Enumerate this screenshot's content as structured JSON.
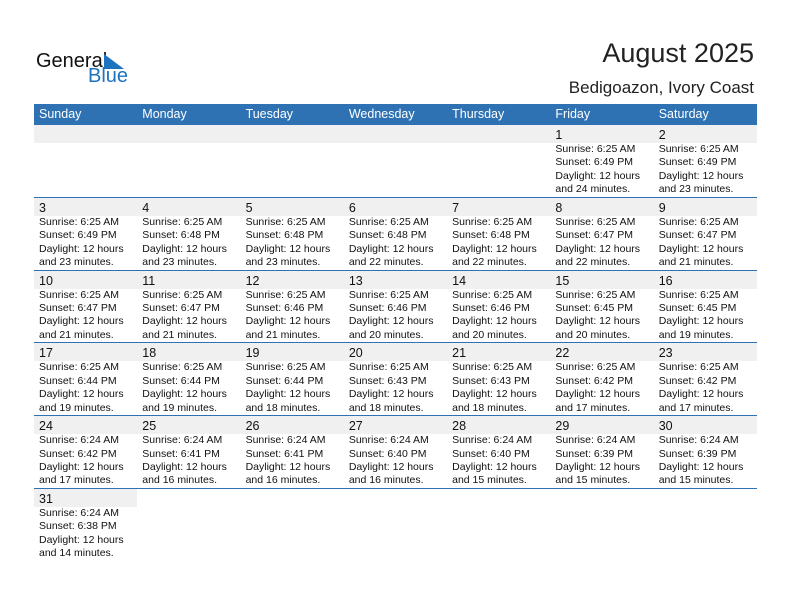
{
  "logo": {
    "line1": "General",
    "line2": "Blue"
  },
  "header": {
    "title": "August 2025",
    "location": "Bedigoazon, Ivory Coast"
  },
  "colors": {
    "accent": "#2e72b4",
    "band": "#f0f0f0",
    "logo_blue": "#1e73be"
  },
  "weekdays": [
    "Sunday",
    "Monday",
    "Tuesday",
    "Wednesday",
    "Thursday",
    "Friday",
    "Saturday"
  ],
  "weeks": [
    [
      null,
      null,
      null,
      null,
      null,
      {
        "day": "1",
        "sunrise": "Sunrise: 6:25 AM",
        "sunset": "Sunset: 6:49 PM",
        "daylight": "Daylight: 12 hours",
        "minutes": "and 24 minutes."
      },
      {
        "day": "2",
        "sunrise": "Sunrise: 6:25 AM",
        "sunset": "Sunset: 6:49 PM",
        "daylight": "Daylight: 12 hours",
        "minutes": "and 23 minutes."
      }
    ],
    [
      {
        "day": "3",
        "sunrise": "Sunrise: 6:25 AM",
        "sunset": "Sunset: 6:49 PM",
        "daylight": "Daylight: 12 hours",
        "minutes": "and 23 minutes."
      },
      {
        "day": "4",
        "sunrise": "Sunrise: 6:25 AM",
        "sunset": "Sunset: 6:48 PM",
        "daylight": "Daylight: 12 hours",
        "minutes": "and 23 minutes."
      },
      {
        "day": "5",
        "sunrise": "Sunrise: 6:25 AM",
        "sunset": "Sunset: 6:48 PM",
        "daylight": "Daylight: 12 hours",
        "minutes": "and 23 minutes."
      },
      {
        "day": "6",
        "sunrise": "Sunrise: 6:25 AM",
        "sunset": "Sunset: 6:48 PM",
        "daylight": "Daylight: 12 hours",
        "minutes": "and 22 minutes."
      },
      {
        "day": "7",
        "sunrise": "Sunrise: 6:25 AM",
        "sunset": "Sunset: 6:48 PM",
        "daylight": "Daylight: 12 hours",
        "minutes": "and 22 minutes."
      },
      {
        "day": "8",
        "sunrise": "Sunrise: 6:25 AM",
        "sunset": "Sunset: 6:47 PM",
        "daylight": "Daylight: 12 hours",
        "minutes": "and 22 minutes."
      },
      {
        "day": "9",
        "sunrise": "Sunrise: 6:25 AM",
        "sunset": "Sunset: 6:47 PM",
        "daylight": "Daylight: 12 hours",
        "minutes": "and 21 minutes."
      }
    ],
    [
      {
        "day": "10",
        "sunrise": "Sunrise: 6:25 AM",
        "sunset": "Sunset: 6:47 PM",
        "daylight": "Daylight: 12 hours",
        "minutes": "and 21 minutes."
      },
      {
        "day": "11",
        "sunrise": "Sunrise: 6:25 AM",
        "sunset": "Sunset: 6:47 PM",
        "daylight": "Daylight: 12 hours",
        "minutes": "and 21 minutes."
      },
      {
        "day": "12",
        "sunrise": "Sunrise: 6:25 AM",
        "sunset": "Sunset: 6:46 PM",
        "daylight": "Daylight: 12 hours",
        "minutes": "and 21 minutes."
      },
      {
        "day": "13",
        "sunrise": "Sunrise: 6:25 AM",
        "sunset": "Sunset: 6:46 PM",
        "daylight": "Daylight: 12 hours",
        "minutes": "and 20 minutes."
      },
      {
        "day": "14",
        "sunrise": "Sunrise: 6:25 AM",
        "sunset": "Sunset: 6:46 PM",
        "daylight": "Daylight: 12 hours",
        "minutes": "and 20 minutes."
      },
      {
        "day": "15",
        "sunrise": "Sunrise: 6:25 AM",
        "sunset": "Sunset: 6:45 PM",
        "daylight": "Daylight: 12 hours",
        "minutes": "and 20 minutes."
      },
      {
        "day": "16",
        "sunrise": "Sunrise: 6:25 AM",
        "sunset": "Sunset: 6:45 PM",
        "daylight": "Daylight: 12 hours",
        "minutes": "and 19 minutes."
      }
    ],
    [
      {
        "day": "17",
        "sunrise": "Sunrise: 6:25 AM",
        "sunset": "Sunset: 6:44 PM",
        "daylight": "Daylight: 12 hours",
        "minutes": "and 19 minutes."
      },
      {
        "day": "18",
        "sunrise": "Sunrise: 6:25 AM",
        "sunset": "Sunset: 6:44 PM",
        "daylight": "Daylight: 12 hours",
        "minutes": "and 19 minutes."
      },
      {
        "day": "19",
        "sunrise": "Sunrise: 6:25 AM",
        "sunset": "Sunset: 6:44 PM",
        "daylight": "Daylight: 12 hours",
        "minutes": "and 18 minutes."
      },
      {
        "day": "20",
        "sunrise": "Sunrise: 6:25 AM",
        "sunset": "Sunset: 6:43 PM",
        "daylight": "Daylight: 12 hours",
        "minutes": "and 18 minutes."
      },
      {
        "day": "21",
        "sunrise": "Sunrise: 6:25 AM",
        "sunset": "Sunset: 6:43 PM",
        "daylight": "Daylight: 12 hours",
        "minutes": "and 18 minutes."
      },
      {
        "day": "22",
        "sunrise": "Sunrise: 6:25 AM",
        "sunset": "Sunset: 6:42 PM",
        "daylight": "Daylight: 12 hours",
        "minutes": "and 17 minutes."
      },
      {
        "day": "23",
        "sunrise": "Sunrise: 6:25 AM",
        "sunset": "Sunset: 6:42 PM",
        "daylight": "Daylight: 12 hours",
        "minutes": "and 17 minutes."
      }
    ],
    [
      {
        "day": "24",
        "sunrise": "Sunrise: 6:24 AM",
        "sunset": "Sunset: 6:42 PM",
        "daylight": "Daylight: 12 hours",
        "minutes": "and 17 minutes."
      },
      {
        "day": "25",
        "sunrise": "Sunrise: 6:24 AM",
        "sunset": "Sunset: 6:41 PM",
        "daylight": "Daylight: 12 hours",
        "minutes": "and 16 minutes."
      },
      {
        "day": "26",
        "sunrise": "Sunrise: 6:24 AM",
        "sunset": "Sunset: 6:41 PM",
        "daylight": "Daylight: 12 hours",
        "minutes": "and 16 minutes."
      },
      {
        "day": "27",
        "sunrise": "Sunrise: 6:24 AM",
        "sunset": "Sunset: 6:40 PM",
        "daylight": "Daylight: 12 hours",
        "minutes": "and 16 minutes."
      },
      {
        "day": "28",
        "sunrise": "Sunrise: 6:24 AM",
        "sunset": "Sunset: 6:40 PM",
        "daylight": "Daylight: 12 hours",
        "minutes": "and 15 minutes."
      },
      {
        "day": "29",
        "sunrise": "Sunrise: 6:24 AM",
        "sunset": "Sunset: 6:39 PM",
        "daylight": "Daylight: 12 hours",
        "minutes": "and 15 minutes."
      },
      {
        "day": "30",
        "sunrise": "Sunrise: 6:24 AM",
        "sunset": "Sunset: 6:39 PM",
        "daylight": "Daylight: 12 hours",
        "minutes": "and 15 minutes."
      }
    ],
    [
      {
        "day": "31",
        "sunrise": "Sunrise: 6:24 AM",
        "sunset": "Sunset: 6:38 PM",
        "daylight": "Daylight: 12 hours",
        "minutes": "and 14 minutes."
      }
    ]
  ]
}
